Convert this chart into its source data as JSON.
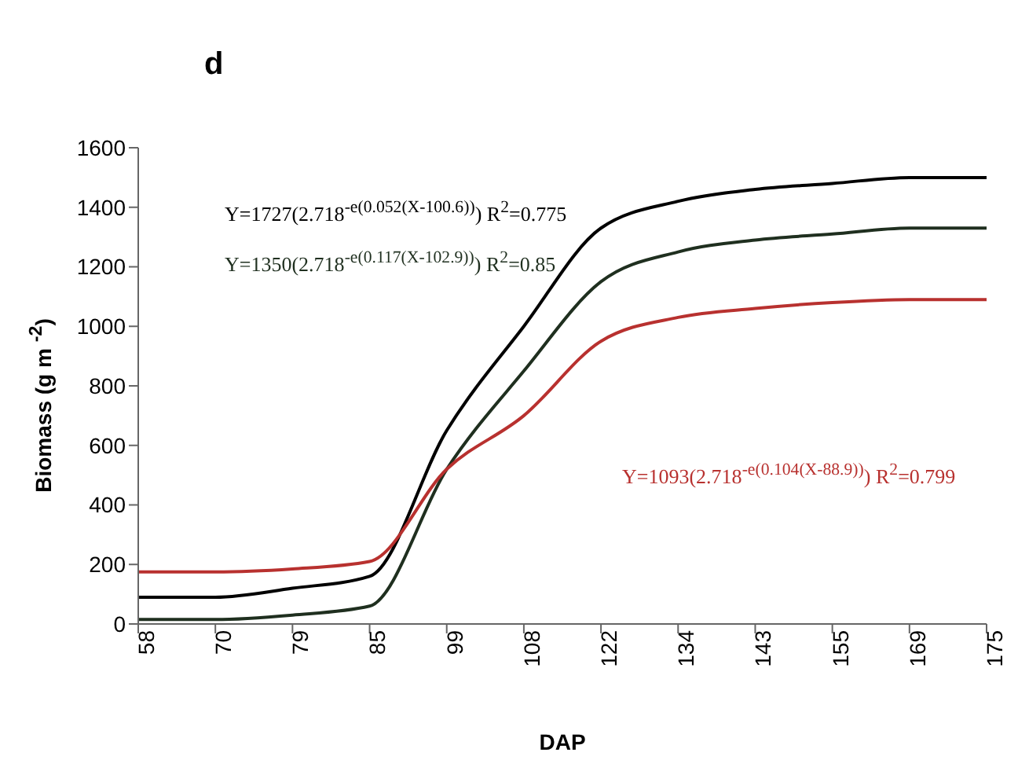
{
  "chart_data": {
    "type": "line",
    "title": "d",
    "xlabel": "DAP",
    "ylabel": "Biomass (g m $^{-2}$)",
    "categories": [
      "58",
      "70",
      "79",
      "85",
      "99",
      "108",
      "122",
      "134",
      "143",
      "155",
      "169",
      "175"
    ],
    "series": [
      {
        "color": "#000000",
        "values": [
          90,
          90,
          120,
          160,
          650,
          1000,
          1330,
          1420,
          1460,
          1480,
          1500,
          1500
        ]
      },
      {
        "color": "#1f2f1f",
        "values": [
          15,
          15,
          30,
          60,
          520,
          850,
          1150,
          1250,
          1290,
          1310,
          1330,
          1330
        ]
      },
      {
        "color": "#b8312f",
        "values": [
          175,
          175,
          185,
          210,
          520,
          700,
          950,
          1030,
          1060,
          1080,
          1090,
          1090
        ]
      }
    ],
    "annotations": [
      "Y=1727(2.718$^{-e(0.052(X-100.6))}$) R$^{2}$=0.775",
      "Y=1350(2.718$^{-e(0.117(X-102.9))}$) R$^{2}$=0.85",
      "Y=1093(2.718$^{-e(0.104(X-88.9))}$) R$^{2}$=0.799"
    ],
    "ylim": [
      0,
      1600
    ],
    "yticks": [
      0,
      200,
      400,
      600,
      800,
      1000,
      1200,
      1400,
      1600
    ],
    "grid": false,
    "legend": false,
    "marker": "none",
    "line_style": "solid"
  }
}
